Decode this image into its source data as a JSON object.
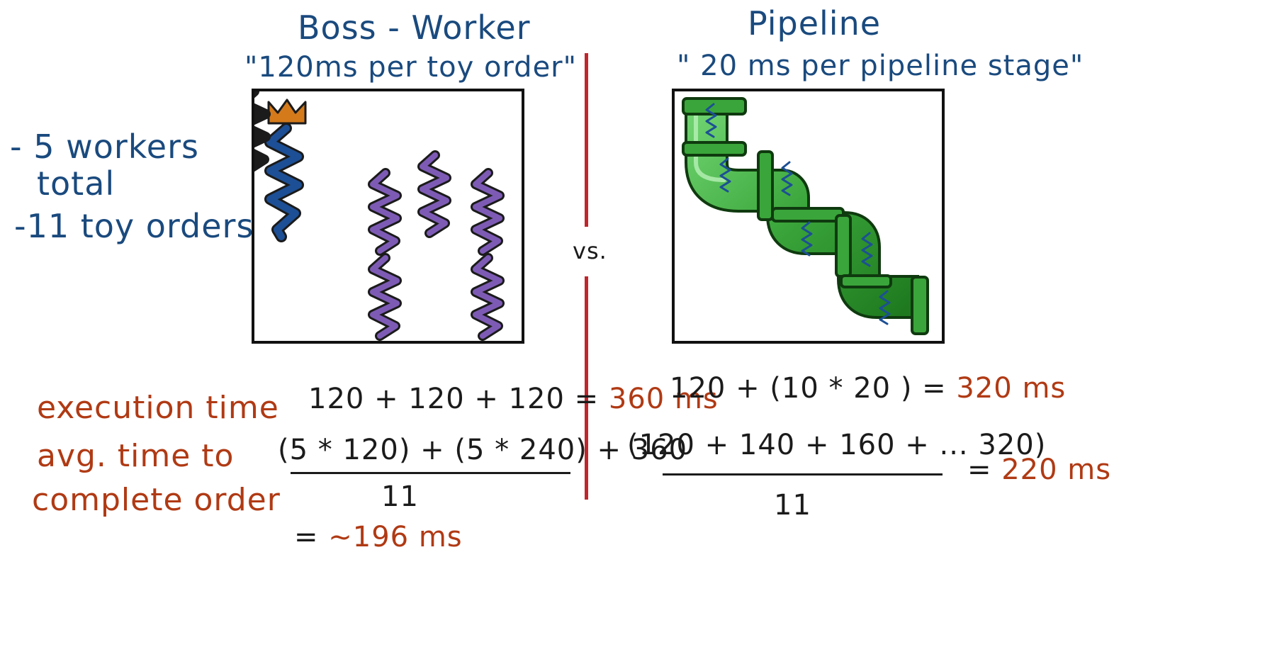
{
  "boss_worker": {
    "title": "Boss - Worker",
    "subtitle": "\"120ms per toy order\""
  },
  "pipeline": {
    "title": "Pipeline",
    "subtitle": "\" 20 ms per pipeline stage\""
  },
  "vs_label": "vs.",
  "givens": {
    "workers_line1": "- 5 workers",
    "workers_line2": "total",
    "orders": "-11 toy orders"
  },
  "labels": {
    "execution_time": "execution time",
    "avg_line1": "avg. time to",
    "avg_line2": "complete order"
  },
  "boss_calc": {
    "exec_expr": "120 + 120 + 120 =",
    "exec_result": "360 ms",
    "avg_numerator": "(5 * 120) + (5 * 240) + 360",
    "avg_denominator": "11",
    "avg_result_prefix": "=",
    "avg_result": "~196 ms"
  },
  "pipeline_calc": {
    "exec_expr": "120 +  (10 * 20 )  =",
    "exec_result": "320 ms",
    "avg_numerator": "(120 + 140 + 160 + ...   320)",
    "avg_denominator": "11",
    "avg_result_prefix": "=",
    "avg_result": "220 ms"
  },
  "colors": {
    "blue_ink": "#1a4a7e",
    "red_ink": "#b03a14",
    "divider": "#c0262c",
    "crown": "#d47a1a",
    "boss_thread": "#1c4f95",
    "worker_thread": "#7d5bb5",
    "pipe": "#3aa53a"
  },
  "icons": [
    "crown-icon",
    "boss-thread-icon",
    "worker-thread-icon",
    "pipe-icon"
  ]
}
